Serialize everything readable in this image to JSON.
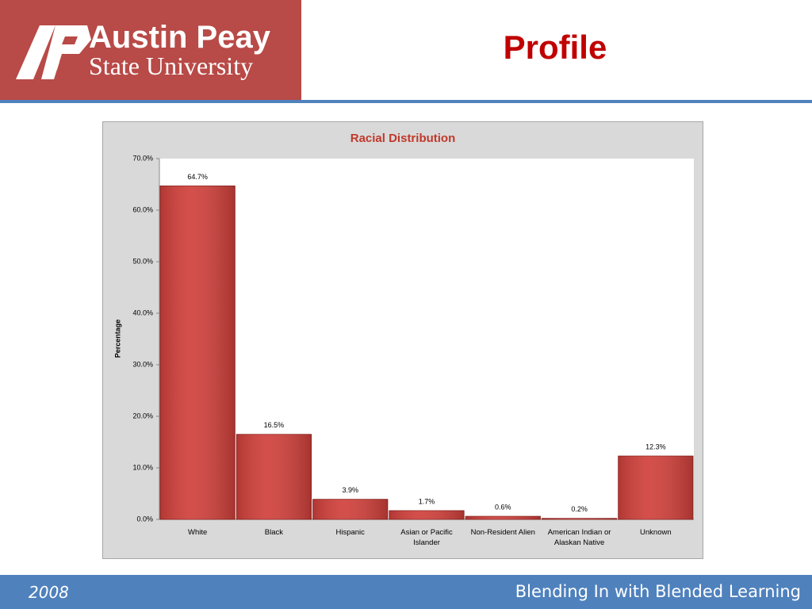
{
  "slide": {
    "logo_line1": "Austin Peay",
    "logo_line2": "State University",
    "title": "Profile",
    "footer_left": "2008",
    "footer_right": "Blending In with Blended Learning"
  },
  "chart_data": {
    "type": "bar",
    "title": "Racial Distribution",
    "y_label": "Percentage",
    "categories": [
      "White",
      "Black",
      "Hispanic",
      "Asian or Pacific Islander",
      "Non-Resident Alien",
      "American Indian or Alaskan Native",
      "Unknown"
    ],
    "values": [
      64.7,
      16.5,
      3.9,
      1.7,
      0.6,
      0.2,
      12.3
    ],
    "value_labels": [
      "64.7%",
      "16.5%",
      "3.9%",
      "1.7%",
      "0.6%",
      "0.2%",
      "12.3%"
    ],
    "color": "#d0403b",
    "ylim": [
      0,
      70
    ],
    "yticks": [
      {
        "value": 0,
        "label": "0.0%"
      },
      {
        "value": 10,
        "label": "10.0%"
      },
      {
        "value": 20,
        "label": "20.0%"
      },
      {
        "value": 30,
        "label": "30.0%"
      },
      {
        "value": 40,
        "label": "40.0%"
      },
      {
        "value": 50,
        "label": "50.0%"
      },
      {
        "value": 60,
        "label": "60.0%"
      },
      {
        "value": 70,
        "label": "70.0%"
      }
    ]
  }
}
